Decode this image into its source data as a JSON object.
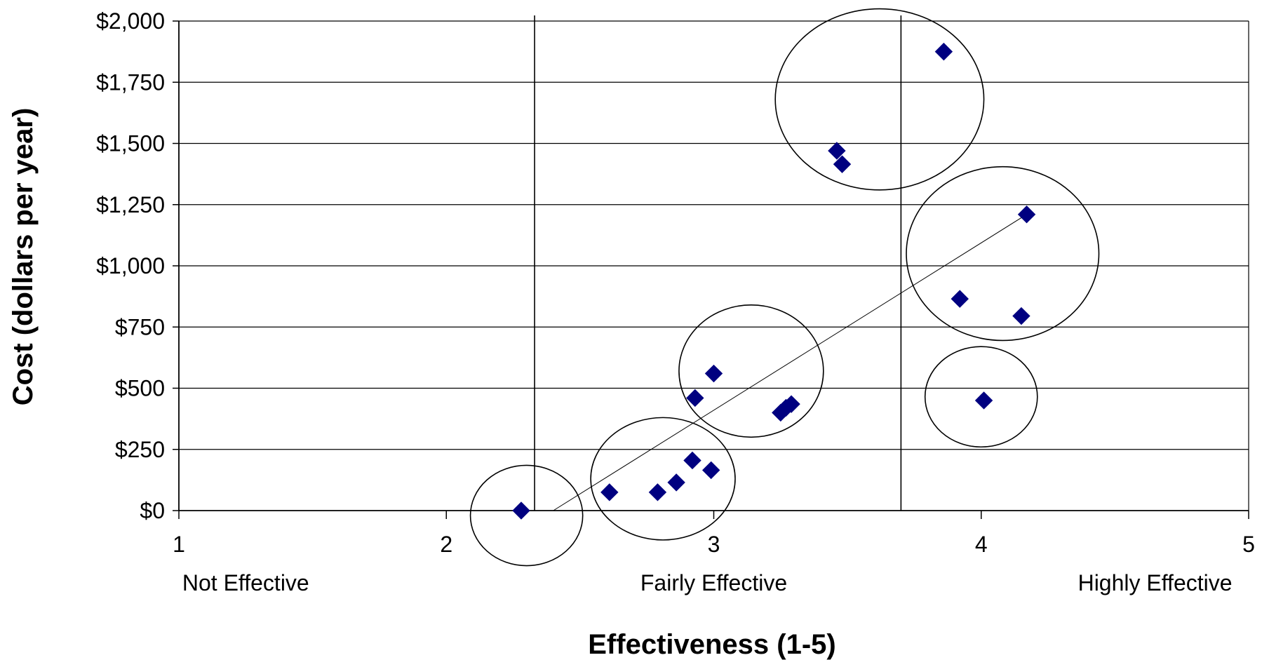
{
  "chart_data": {
    "type": "scatter",
    "title": "",
    "xlabel": "Effectiveness (1-5)",
    "ylabel": "Cost (dollars per year)",
    "xlim": [
      1,
      5
    ],
    "ylim": [
      0,
      2000
    ],
    "x_ticks": [
      {
        "value": 1,
        "label": "1"
      },
      {
        "value": 2,
        "label": "2"
      },
      {
        "value": 3,
        "label": "3"
      },
      {
        "value": 4,
        "label": "4"
      },
      {
        "value": 5,
        "label": "5"
      }
    ],
    "y_ticks": [
      {
        "value": 0,
        "label": "$0"
      },
      {
        "value": 250,
        "label": "$250"
      },
      {
        "value": 500,
        "label": "$500"
      },
      {
        "value": 750,
        "label": "$750"
      },
      {
        "value": 1000,
        "label": "$1,000"
      },
      {
        "value": 1250,
        "label": "$1,250"
      },
      {
        "value": 1500,
        "label": "$1,500"
      },
      {
        "value": 1750,
        "label": "$1,750"
      },
      {
        "value": 2000,
        "label": "$2,000"
      }
    ],
    "category_labels": [
      {
        "x": 1.25,
        "text": "Not Effective"
      },
      {
        "x": 3.0,
        "text": "Fairly Effective"
      },
      {
        "x": 4.65,
        "text": "Highly Effective"
      }
    ],
    "horizontal_grid": true,
    "divider_lines_x": [
      2.33,
      3.7
    ],
    "marker_color": "#000080",
    "points": [
      {
        "x": 2.28,
        "y": 0
      },
      {
        "x": 2.61,
        "y": 75
      },
      {
        "x": 2.79,
        "y": 75
      },
      {
        "x": 2.86,
        "y": 115
      },
      {
        "x": 2.92,
        "y": 205
      },
      {
        "x": 2.99,
        "y": 165
      },
      {
        "x": 2.93,
        "y": 460
      },
      {
        "x": 3.0,
        "y": 560
      },
      {
        "x": 3.25,
        "y": 400
      },
      {
        "x": 3.27,
        "y": 420
      },
      {
        "x": 3.29,
        "y": 435
      },
      {
        "x": 3.46,
        "y": 1470
      },
      {
        "x": 3.48,
        "y": 1415
      },
      {
        "x": 3.86,
        "y": 1875
      },
      {
        "x": 3.92,
        "y": 865
      },
      {
        "x": 4.01,
        "y": 450
      },
      {
        "x": 4.15,
        "y": 795
      },
      {
        "x": 4.17,
        "y": 1210
      }
    ],
    "trendline": {
      "from": [
        2.4,
        0
      ],
      "to": [
        4.17,
        1210
      ]
    },
    "cluster_ellipses": [
      {
        "cx": 2.3,
        "cy": -20,
        "rx": 0.21,
        "ry": 205
      },
      {
        "cx": 2.81,
        "cy": 130,
        "rx": 0.27,
        "ry": 250
      },
      {
        "cx": 3.14,
        "cy": 570,
        "rx": 0.27,
        "ry": 270
      },
      {
        "cx": 3.62,
        "cy": 1680,
        "rx": 0.39,
        "ry": 370
      },
      {
        "cx": 4.08,
        "cy": 1050,
        "rx": 0.36,
        "ry": 355
      },
      {
        "cx": 4.0,
        "cy": 465,
        "rx": 0.21,
        "ry": 205
      }
    ]
  }
}
